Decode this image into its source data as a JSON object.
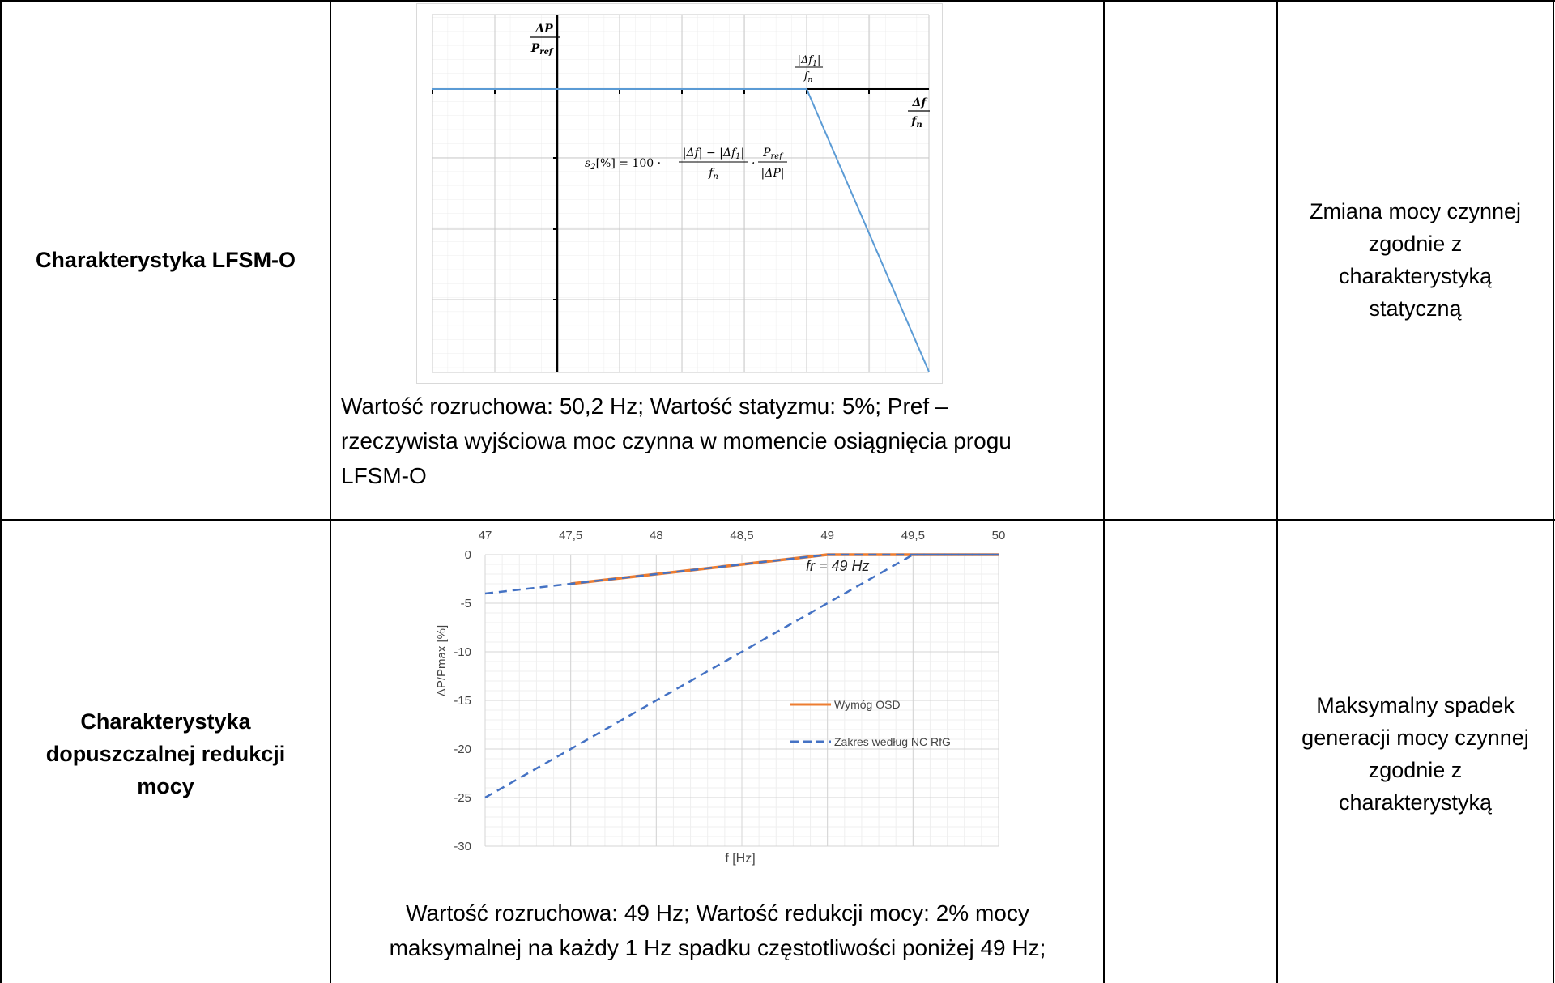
{
  "rows": [
    {
      "label": "Charakterystyka LFSM-O",
      "caption_lines": [
        "Wartość rozruchowa: 50,2 Hz; Wartość statyzmu: 5%;  Pref –",
        "rzeczywista wyjściowa moc czynna w momencie osiągnięcia progu",
        "LFSM-O"
      ],
      "description_lines": [
        "Zmiana mocy czynnej",
        "zgodnie z",
        "charakterystyką",
        "statyczną"
      ]
    },
    {
      "label_lines": [
        "Charakterystyka",
        "dopuszczalnej redukcji",
        "mocy"
      ],
      "caption_lines": [
        "Wartość rozruchowa: 49 Hz; Wartość redukcji mocy: 2% mocy",
        "maksymalnej na każdy 1 Hz spadku częstotliwości poniżej 49 Hz;"
      ],
      "description_lines": [
        "Maksymalny spadek",
        "generacji mocy czynnej",
        "zgodnie z",
        "charakterystyką"
      ]
    }
  ],
  "lfsm_diagram": {
    "y_axis_numerator": "ΔP",
    "y_axis_denominator": "P",
    "y_axis_denominator_sub": "ref",
    "x_axis_numerator": "Δf",
    "x_axis_denominator": "f",
    "x_axis_denominator_sub": "n",
    "threshold_numerator": "|Δf",
    "threshold_numerator_sub": "1",
    "threshold_numerator_end": "|",
    "threshold_denominator": "f",
    "threshold_denominator_sub": "n",
    "formula_lhs": "s",
    "formula_lhs_sub": "2",
    "formula_lhs_rest": "[%] = 100 ·",
    "formula_frac1_num": "|Δf| − |Δf",
    "formula_frac1_num_sub": "1",
    "formula_frac1_num_end": "|",
    "formula_frac1_den": "f",
    "formula_frac1_den_sub": "n",
    "formula_dot": "·",
    "formula_frac2_num": "P",
    "formula_frac2_num_sub": "ref",
    "formula_frac2_den": "|ΔP|",
    "line_color": "#5b9bd5"
  },
  "chart_data": {
    "type": "line",
    "title": "",
    "xlabel": "f [Hz]",
    "ylabel": "ΔP/Pmax [%]",
    "xlim": [
      47,
      50
    ],
    "ylim": [
      -30,
      0
    ],
    "x_ticks": [
      "47",
      "47,5",
      "48",
      "48,5",
      "49",
      "49,5",
      "50"
    ],
    "y_ticks": [
      "0",
      "-5",
      "-10",
      "-15",
      "-20",
      "-25",
      "-30"
    ],
    "x_axis_position": "top",
    "grid": true,
    "annotation": "fr = 49 Hz",
    "legend_position": "right",
    "series": [
      {
        "name": "Wymóg OSD",
        "color": "#ed7d31",
        "style": "solid",
        "x": [
          47.5,
          49,
          50
        ],
        "y": [
          -3,
          0,
          0
        ]
      },
      {
        "name": "Zakres według NC RfG",
        "color": "#4472c4",
        "style": "dashed",
        "lines": [
          {
            "x": [
              47,
              47.5,
              49,
              50
            ],
            "y": [
              -4,
              -3,
              0,
              0
            ]
          },
          {
            "x": [
              47,
              49.5,
              50
            ],
            "y": [
              -25,
              0,
              0
            ]
          }
        ]
      }
    ]
  }
}
